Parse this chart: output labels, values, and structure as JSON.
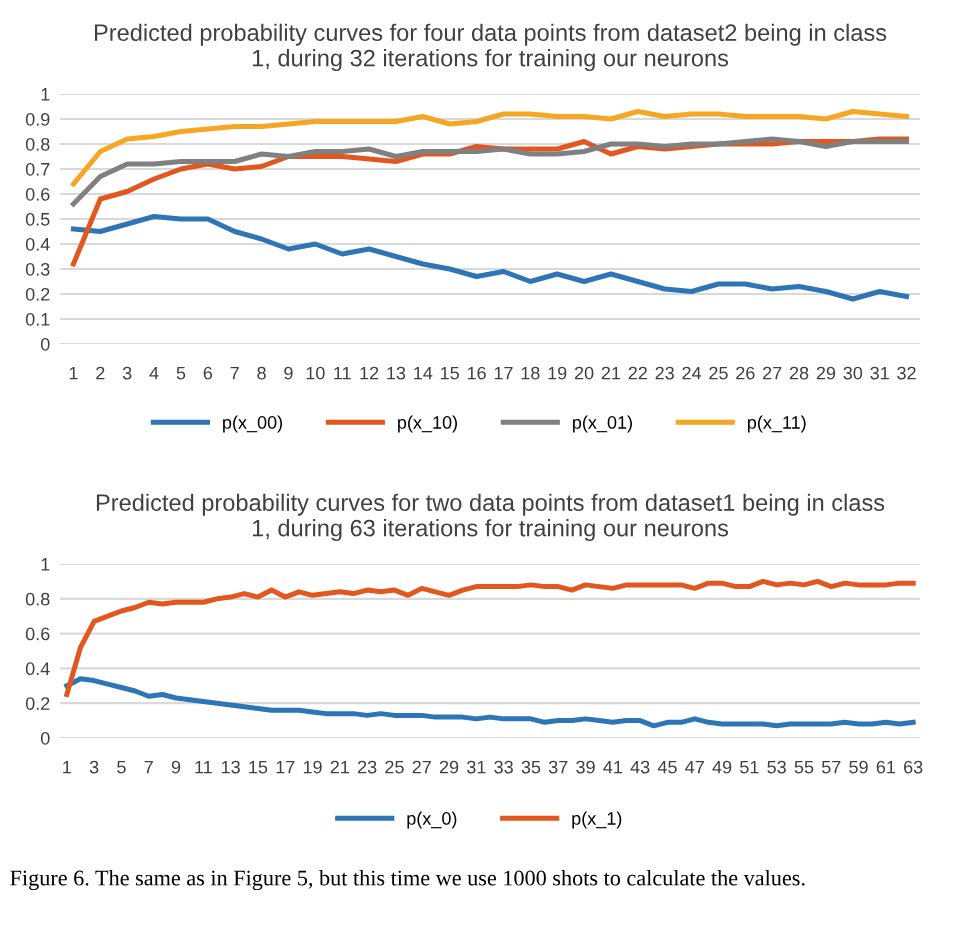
{
  "chart_data": [
    {
      "type": "line",
      "title": "Predicted probability curves for four data points from dataset2 being in class\n1, during 32 iterations for training our neurons",
      "categories": [
        "1",
        "2",
        "3",
        "4",
        "5",
        "6",
        "7",
        "8",
        "9",
        "10",
        "11",
        "12",
        "13",
        "14",
        "15",
        "16",
        "17",
        "18",
        "19",
        "20",
        "21",
        "22",
        "23",
        "24",
        "25",
        "26",
        "27",
        "28",
        "29",
        "30",
        "31",
        "32"
      ],
      "series": [
        {
          "name": "p(x_00)",
          "color": "#2e75b6",
          "values": [
            0.46,
            0.45,
            0.48,
            0.51,
            0.5,
            0.5,
            0.45,
            0.42,
            0.38,
            0.4,
            0.36,
            0.38,
            0.35,
            0.32,
            0.3,
            0.27,
            0.29,
            0.25,
            0.28,
            0.25,
            0.28,
            0.25,
            0.22,
            0.21,
            0.24,
            0.24,
            0.22,
            0.23,
            0.21,
            0.18,
            0.21,
            0.19
          ]
        },
        {
          "name": "p(x_10)",
          "color": "#e2571e",
          "values": [
            0.32,
            0.58,
            0.61,
            0.66,
            0.7,
            0.72,
            0.7,
            0.71,
            0.75,
            0.75,
            0.75,
            0.74,
            0.73,
            0.76,
            0.76,
            0.79,
            0.78,
            0.78,
            0.78,
            0.81,
            0.76,
            0.79,
            0.78,
            0.79,
            0.8,
            0.8,
            0.8,
            0.81,
            0.81,
            0.81,
            0.82,
            0.82
          ]
        },
        {
          "name": "p(x_01)",
          "color": "#808080",
          "values": [
            0.56,
            0.67,
            0.72,
            0.72,
            0.73,
            0.73,
            0.73,
            0.76,
            0.75,
            0.77,
            0.77,
            0.78,
            0.75,
            0.77,
            0.77,
            0.77,
            0.78,
            0.76,
            0.76,
            0.77,
            0.8,
            0.8,
            0.79,
            0.8,
            0.8,
            0.81,
            0.82,
            0.81,
            0.79,
            0.81,
            0.81,
            0.81
          ]
        },
        {
          "name": "p(x_11)",
          "color": "#f5a623",
          "values": [
            0.64,
            0.77,
            0.82,
            0.83,
            0.85,
            0.86,
            0.87,
            0.87,
            0.88,
            0.89,
            0.89,
            0.89,
            0.89,
            0.91,
            0.88,
            0.89,
            0.92,
            0.92,
            0.91,
            0.91,
            0.9,
            0.93,
            0.91,
            0.92,
            0.92,
            0.91,
            0.91,
            0.91,
            0.9,
            0.93,
            0.92,
            0.91
          ]
        }
      ],
      "ylim": [
        0,
        1
      ],
      "yticks": [
        0,
        0.1,
        0.2,
        0.3,
        0.4,
        0.5,
        0.6,
        0.7,
        0.8,
        0.9,
        1
      ],
      "grid": "y",
      "legend": "bottom",
      "marker": "none",
      "line_style": "solid"
    },
    {
      "type": "line",
      "title": "Predicted probability curves for two data points from dataset1 being in class\n1, during 63 iterations for training our neurons",
      "categories": [
        "1",
        null,
        "3",
        null,
        "5",
        null,
        "7",
        null,
        "9",
        null,
        "11",
        null,
        "13",
        null,
        "15",
        null,
        "17",
        null,
        "19",
        null,
        "21",
        null,
        "23",
        null,
        "25",
        null,
        "27",
        null,
        "29",
        null,
        "31",
        null,
        "33",
        null,
        "35",
        null,
        "37",
        null,
        "39",
        null,
        "41",
        null,
        "43",
        null,
        "45",
        null,
        "47",
        null,
        "49",
        null,
        "51",
        null,
        "53",
        null,
        "55",
        null,
        "57",
        null,
        "59",
        null,
        "61",
        null,
        "63"
      ],
      "series": [
        {
          "name": "p(x_0)",
          "color": "#2e75b6",
          "values": [
            0.3,
            0.34,
            0.33,
            0.31,
            0.29,
            0.27,
            0.24,
            0.25,
            0.23,
            0.22,
            0.21,
            0.2,
            0.19,
            0.18,
            0.17,
            0.16,
            0.16,
            0.16,
            0.15,
            0.14,
            0.14,
            0.14,
            0.13,
            0.14,
            0.13,
            0.13,
            0.13,
            0.12,
            0.12,
            0.12,
            0.11,
            0.12,
            0.11,
            0.11,
            0.11,
            0.09,
            0.1,
            0.1,
            0.11,
            0.1,
            0.09,
            0.1,
            0.1,
            0.07,
            0.09,
            0.09,
            0.11,
            0.09,
            0.08,
            0.08,
            0.08,
            0.08,
            0.07,
            0.08,
            0.08,
            0.08,
            0.08,
            0.09,
            0.08,
            0.08,
            0.09,
            0.08,
            0.09
          ]
        },
        {
          "name": "p(x_1)",
          "color": "#e2571e",
          "values": [
            0.25,
            0.52,
            0.67,
            0.7,
            0.73,
            0.75,
            0.78,
            0.77,
            0.78,
            0.78,
            0.78,
            0.8,
            0.81,
            0.83,
            0.81,
            0.85,
            0.81,
            0.84,
            0.82,
            0.83,
            0.84,
            0.83,
            0.85,
            0.84,
            0.85,
            0.82,
            0.86,
            0.84,
            0.82,
            0.85,
            0.87,
            0.87,
            0.87,
            0.87,
            0.88,
            0.87,
            0.87,
            0.85,
            0.88,
            0.87,
            0.86,
            0.88,
            0.88,
            0.88,
            0.88,
            0.88,
            0.86,
            0.89,
            0.89,
            0.87,
            0.87,
            0.9,
            0.88,
            0.89,
            0.88,
            0.9,
            0.87,
            0.89,
            0.88,
            0.88,
            0.88,
            0.89,
            0.89
          ]
        }
      ],
      "ylim": [
        0,
        1
      ],
      "yticks": [
        0,
        0.2,
        0.4,
        0.6,
        0.8,
        1
      ],
      "grid": "y",
      "legend": "bottom",
      "marker": "none",
      "line_style": "solid",
      "annotations": [
        "Figure 6. The same as in Figure 5, but this time we use 1000 shots to calculate the values."
      ]
    }
  ]
}
